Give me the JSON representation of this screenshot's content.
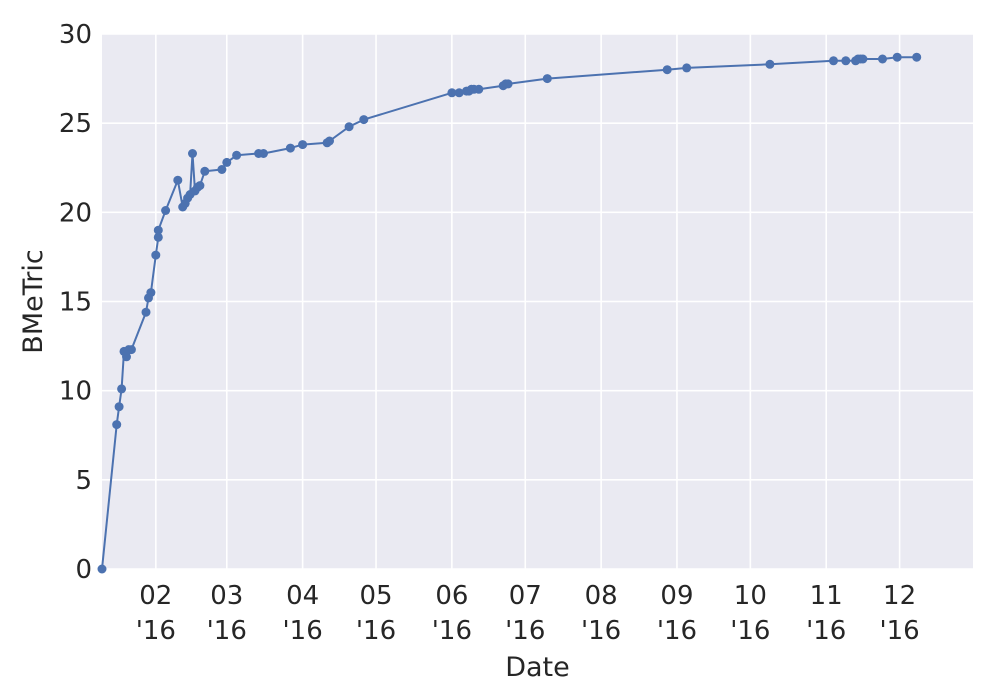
{
  "chart_data": {
    "type": "line",
    "title": "",
    "xlabel": "Date",
    "ylabel": "BMeTric",
    "ylim": [
      0,
      30
    ],
    "xlim": [
      "2016-01-10",
      "2016-12-31"
    ],
    "y_ticks": [
      "0",
      "5",
      "10",
      "15",
      "20",
      "25",
      "30"
    ],
    "x_ticks": [
      {
        "month": "02",
        "year": "'16"
      },
      {
        "month": "03",
        "year": "'16"
      },
      {
        "month": "04",
        "year": "'16"
      },
      {
        "month": "05",
        "year": "'16"
      },
      {
        "month": "06",
        "year": "'16"
      },
      {
        "month": "07",
        "year": "'16"
      },
      {
        "month": "08",
        "year": "'16"
      },
      {
        "month": "09",
        "year": "'16"
      },
      {
        "month": "10",
        "year": "'16"
      },
      {
        "month": "11",
        "year": "'16"
      },
      {
        "month": "12",
        "year": "'16"
      }
    ],
    "grid": true,
    "style": {
      "background": "#eaeaf2",
      "grid": "#ffffff",
      "line_color": "#4c72b0"
    },
    "series": [
      {
        "x": [
          "2016-01-10",
          "2016-01-16",
          "2016-01-17",
          "2016-01-18",
          "2016-01-19",
          "2016-01-20",
          "2016-01-21",
          "2016-01-22",
          "2016-01-28",
          "2016-01-29",
          "2016-01-30",
          "2016-02-01",
          "2016-02-02",
          "2016-02-02",
          "2016-02-05",
          "2016-02-10",
          "2016-02-12",
          "2016-02-13",
          "2016-02-14",
          "2016-02-15",
          "2016-02-16",
          "2016-02-17",
          "2016-02-18",
          "2016-02-19",
          "2016-02-21",
          "2016-02-28",
          "2016-03-01",
          "2016-03-05",
          "2016-03-14",
          "2016-03-16",
          "2016-03-27",
          "2016-04-01",
          "2016-04-11",
          "2016-04-12",
          "2016-04-20",
          "2016-04-26",
          "2016-06-01",
          "2016-06-04",
          "2016-06-07",
          "2016-06-08",
          "2016-06-09",
          "2016-06-10",
          "2016-06-12",
          "2016-06-22",
          "2016-06-23",
          "2016-06-24",
          "2016-07-10",
          "2016-08-28",
          "2016-09-05",
          "2016-10-09",
          "2016-11-04",
          "2016-11-09",
          "2016-11-13",
          "2016-11-14",
          "2016-11-15",
          "2016-11-16",
          "2016-11-24",
          "2016-11-30",
          "2016-12-08"
        ],
        "y": [
          0,
          8.1,
          9.1,
          10.1,
          12.2,
          11.9,
          12.3,
          12.3,
          14.4,
          15.2,
          15.5,
          17.6,
          18.6,
          19.0,
          20.1,
          21.8,
          20.3,
          20.5,
          20.8,
          21.0,
          23.3,
          21.2,
          21.4,
          21.5,
          22.3,
          22.4,
          22.8,
          23.2,
          23.3,
          23.3,
          23.6,
          23.8,
          23.9,
          24.0,
          24.8,
          25.2,
          26.7,
          26.7,
          26.8,
          26.8,
          26.9,
          26.9,
          26.9,
          27.1,
          27.2,
          27.2,
          27.5,
          28.0,
          28.1,
          28.3,
          28.5,
          28.5,
          28.5,
          28.6,
          28.6,
          28.6,
          28.6,
          28.7,
          28.7
        ]
      }
    ]
  }
}
